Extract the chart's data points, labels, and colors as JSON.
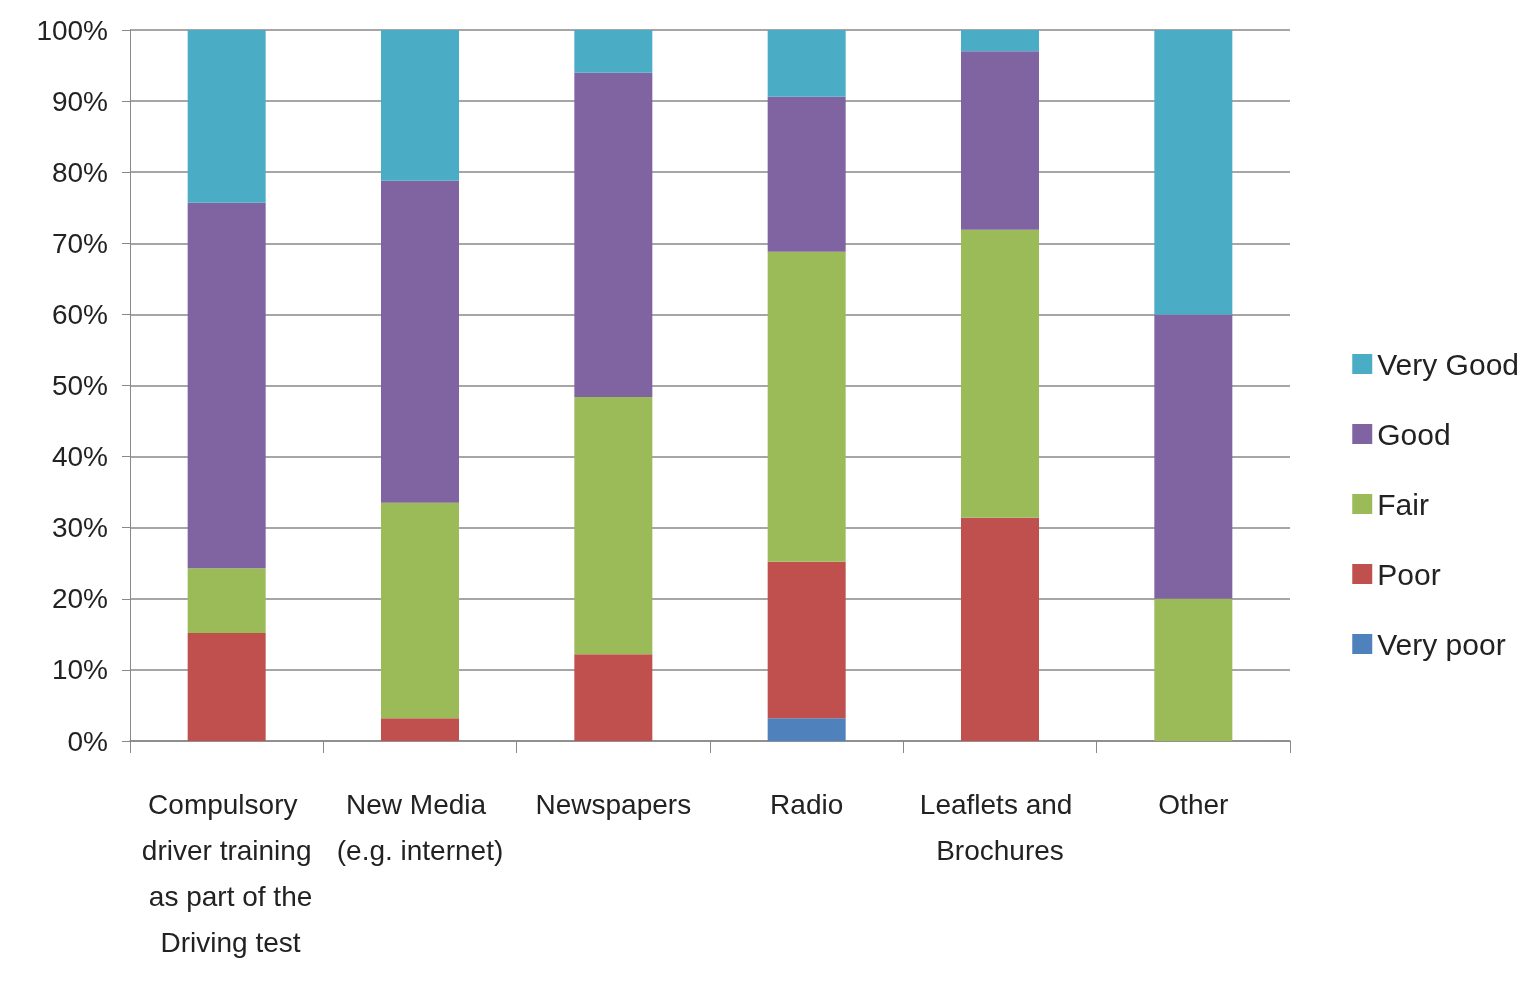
{
  "chart_data": {
    "type": "bar",
    "stacked": true,
    "legend": "right",
    "grid": "y",
    "categories": [
      "Compulsory driver training as part of the Driving test",
      "New Media (e.g. internet)",
      "Newspapers",
      "Radio",
      "Leaflets and Brochures",
      "Other"
    ],
    "series": [
      {
        "name": "Very poor",
        "color": "#4f81bd",
        "values": [
          0,
          0,
          0,
          3.2,
          0,
          0
        ]
      },
      {
        "name": "Poor",
        "color": "#c0504d",
        "values": [
          15.2,
          3.2,
          12.2,
          22.0,
          31.4,
          0
        ]
      },
      {
        "name": "Fair",
        "color": "#9bbb59",
        "values": [
          9.1,
          30.3,
          36.2,
          43.6,
          40.5,
          20
        ]
      },
      {
        "name": "Good",
        "color": "#8064a2",
        "values": [
          51.4,
          45.3,
          45.6,
          21.8,
          25.1,
          40
        ]
      },
      {
        "name": "Very Good",
        "color": "#4bacc6",
        "values": [
          24.3,
          21.2,
          6.0,
          9.4,
          3.0,
          40
        ]
      }
    ],
    "ylim": [
      0,
      100
    ],
    "yticks": [
      {
        "value": 0,
        "label": "0%"
      },
      {
        "value": 10,
        "label": "10%"
      },
      {
        "value": 20,
        "label": "20%"
      },
      {
        "value": 30,
        "label": "30%"
      },
      {
        "value": 40,
        "label": "40%"
      },
      {
        "value": 50,
        "label": "50%"
      },
      {
        "value": 60,
        "label": "60%"
      },
      {
        "value": 70,
        "label": "70%"
      },
      {
        "value": 80,
        "label": "80%"
      },
      {
        "value": 90,
        "label": "90%"
      },
      {
        "value": 100,
        "label": "100%"
      }
    ]
  }
}
